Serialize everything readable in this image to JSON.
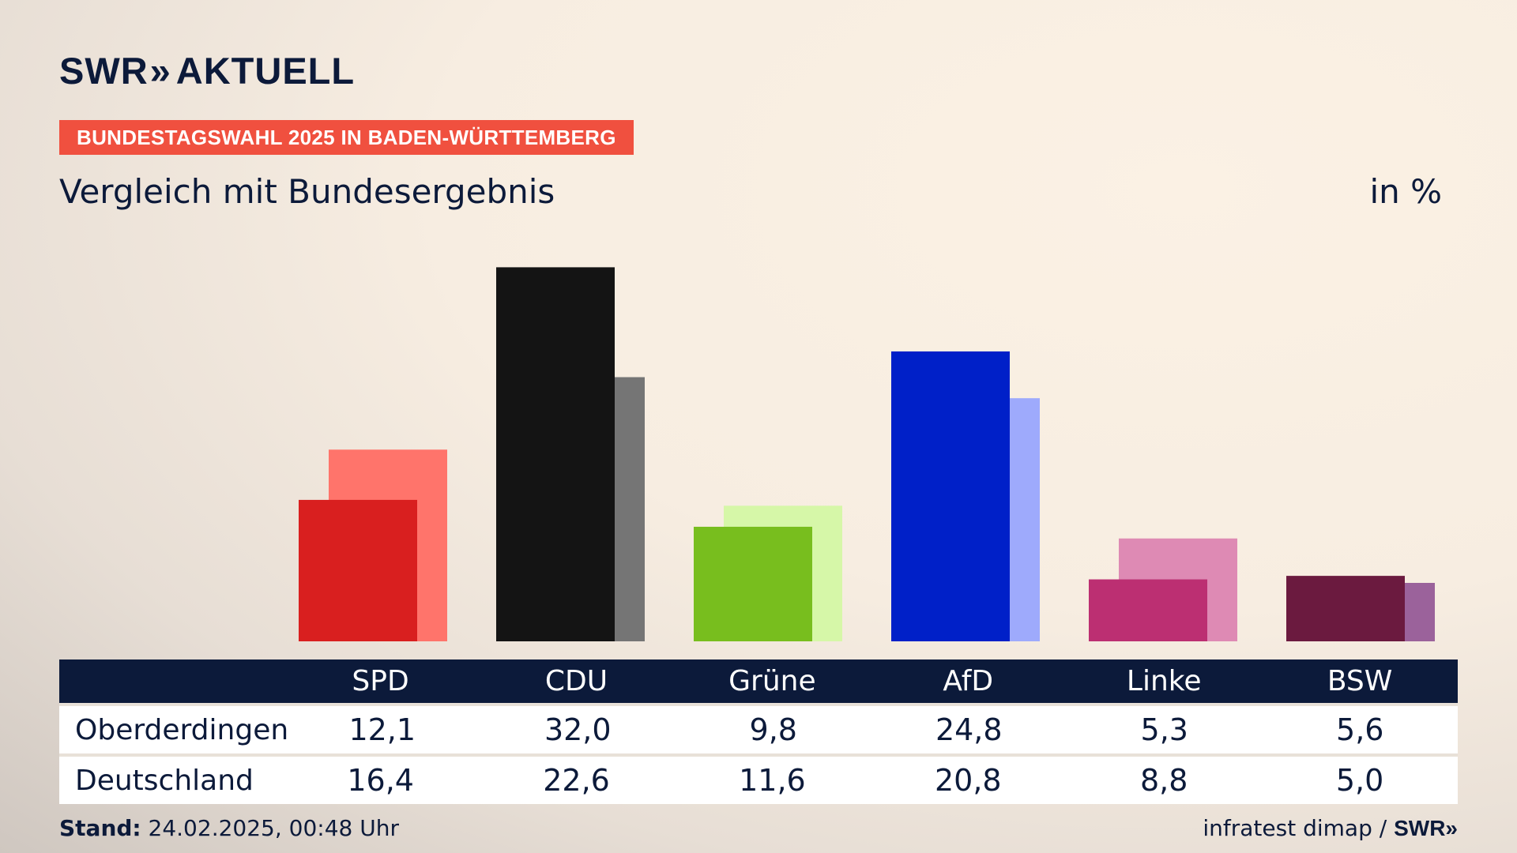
{
  "header": {
    "logo_text": "SWR",
    "logo_chevrons": "»",
    "logo_suffix": "AKTUELL",
    "tag": "BUNDESTAGSWAHL 2025 IN BADEN-WÜRTTEMBERG",
    "subtitle": "Vergleich mit Bundesergebnis",
    "unit": "in %"
  },
  "table": {
    "rows": [
      {
        "label": "Oberderdingen",
        "values": [
          "12,1",
          "32,0",
          "9,8",
          "24,8",
          "5,3",
          "5,6"
        ]
      },
      {
        "label": "Deutschland",
        "values": [
          "16,4",
          "22,6",
          "11,6",
          "20,8",
          "8,8",
          "5,0"
        ]
      }
    ]
  },
  "footer": {
    "stand_label": "Stand:",
    "stand_value": "24.02.2025, 00:48 Uhr",
    "source": "infratest dimap /",
    "brand": "SWR»"
  },
  "colors": {
    "navy": "#0c1a3a",
    "tag": "#f0503f"
  },
  "chart_data": {
    "type": "bar",
    "categories": [
      "SPD",
      "CDU",
      "Grüne",
      "AfD",
      "Linke",
      "BSW"
    ],
    "series": [
      {
        "name": "Oberderdingen",
        "values": [
          12.1,
          32.0,
          9.8,
          24.8,
          5.3,
          5.6
        ]
      },
      {
        "name": "Deutschland",
        "values": [
          16.4,
          22.6,
          11.6,
          20.8,
          8.8,
          5.0
        ]
      }
    ],
    "colors_primary": [
      "#d91f1f",
      "#141414",
      "#78be1e",
      "#0020c8",
      "#bc2f72",
      "#6b1a3f"
    ],
    "colors_secondary": [
      "#ff746b",
      "#757575",
      "#d6f7a8",
      "#9eaafc",
      "#de8ab4",
      "#9b629b"
    ],
    "title": "Vergleich mit Bundesergebnis",
    "ylabel": "in %",
    "grid": false
  }
}
